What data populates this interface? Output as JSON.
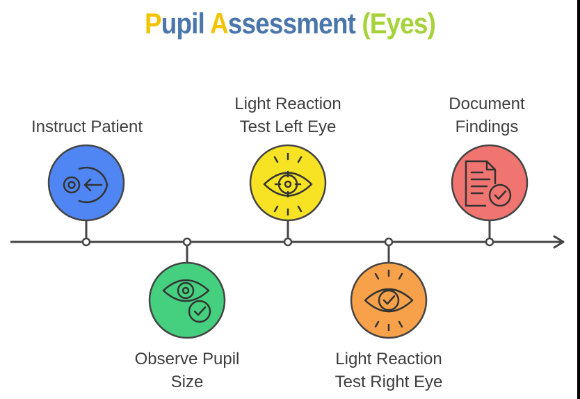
{
  "title": {
    "first_letter": "P",
    "rest_one": "upil ",
    "accent_letter": "A",
    "rest_two": "ssessment ",
    "suffix": "(Eyes)"
  },
  "steps": [
    {
      "label_line1": "Instruct Patient",
      "label_line2": "",
      "icon": "eye-arrow-left-icon",
      "color": "#4f86f3"
    },
    {
      "label_line1": "Observe Pupil",
      "label_line2": "Size",
      "icon": "eye-check-icon",
      "color": "#45d07f"
    },
    {
      "label_line1": "Light Reaction",
      "label_line2": "Test Left Eye",
      "icon": "eye-target-icon",
      "color": "#f7e324"
    },
    {
      "label_line1": "Light Reaction",
      "label_line2": "Test Right Eye",
      "icon": "eye-check-rays-icon",
      "color": "#f7a14a"
    },
    {
      "label_line1": "Document",
      "label_line2": "Findings",
      "icon": "document-check-icon",
      "color": "#f07470"
    }
  ]
}
